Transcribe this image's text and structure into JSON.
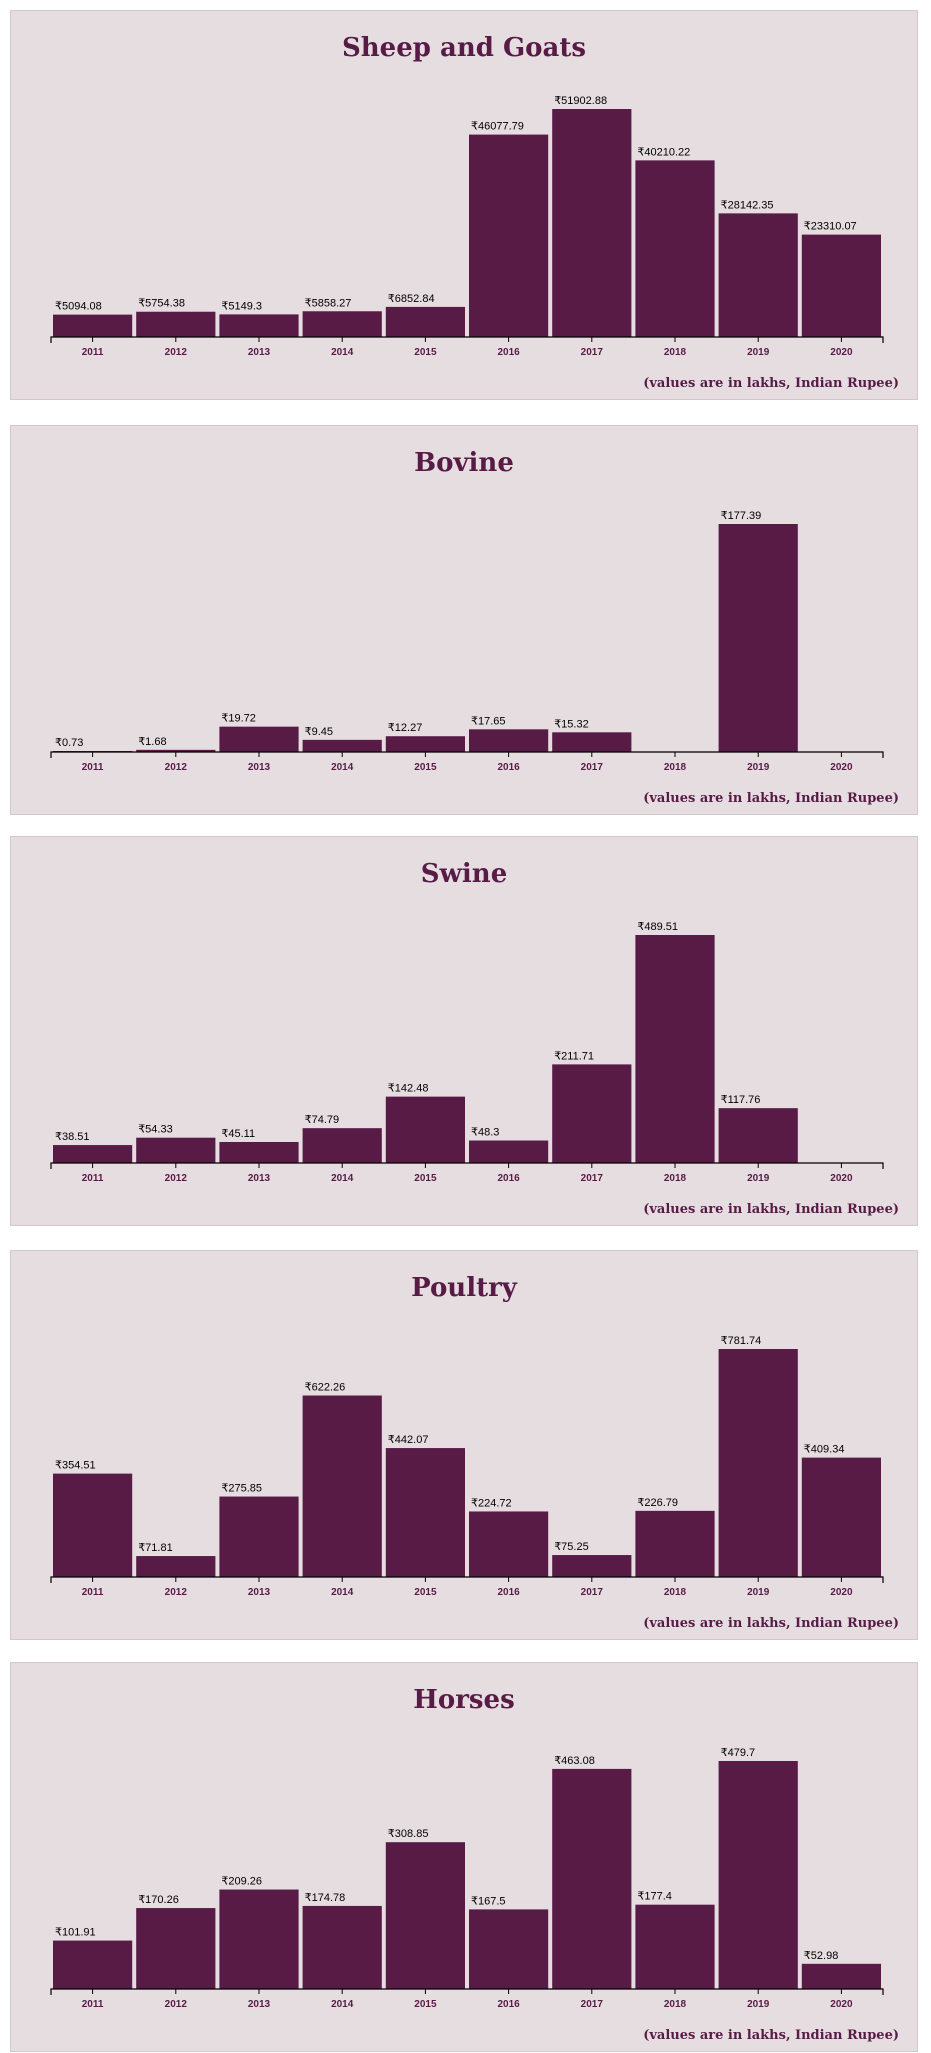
{
  "colors": {
    "bar": "#581b46",
    "panel": "#e6dde1",
    "title": "#581b46"
  },
  "chart_data": [
    {
      "type": "bar",
      "title": "Sheep and Goats",
      "note": "(values are in lakhs, Indian Rupee)",
      "categories": [
        "2011",
        "2012",
        "2013",
        "2014",
        "2015",
        "2016",
        "2017",
        "2018",
        "2019",
        "2020"
      ],
      "values": [
        5094.08,
        5754.38,
        5149.3,
        5858.27,
        6852.84,
        46077.79,
        51902.88,
        40210.22,
        28142.35,
        23310.07
      ],
      "labels": [
        "₹5094.08",
        "₹5754.38",
        "₹5149.3",
        "₹5858.27",
        "₹6852.84",
        "₹46077.79",
        "₹51902.88",
        "₹40210.22",
        "₹28142.35",
        "₹23310.07"
      ]
    },
    {
      "type": "bar",
      "title": "Bovine",
      "note": "(values are in lakhs, Indian Rupee)",
      "categories": [
        "2011",
        "2012",
        "2013",
        "2014",
        "2015",
        "2016",
        "2017",
        "2018",
        "2019",
        "2020"
      ],
      "values": [
        0.73,
        1.68,
        19.72,
        9.45,
        12.27,
        17.65,
        15.32,
        null,
        177.39,
        null
      ],
      "labels": [
        "₹0.73",
        "₹1.68",
        "₹19.72",
        "₹9.45",
        "₹12.27",
        "₹17.65",
        "₹15.32",
        "",
        "₹177.39",
        ""
      ]
    },
    {
      "type": "bar",
      "title": "Swine",
      "note": "(values are in lakhs, Indian Rupee)",
      "categories": [
        "2011",
        "2012",
        "2013",
        "2014",
        "2015",
        "2016",
        "2017",
        "2018",
        "2019",
        "2020"
      ],
      "values": [
        38.51,
        54.33,
        45.11,
        74.79,
        142.48,
        48.3,
        211.71,
        489.51,
        117.76,
        null
      ],
      "labels": [
        "₹38.51",
        "₹54.33",
        "₹45.11",
        "₹74.79",
        "₹142.48",
        "₹48.3",
        "₹211.71",
        "₹489.51",
        "₹117.76",
        ""
      ]
    },
    {
      "type": "bar",
      "title": "Poultry",
      "note": "(values are in lakhs, Indian Rupee)",
      "categories": [
        "2011",
        "2012",
        "2013",
        "2014",
        "2015",
        "2016",
        "2017",
        "2018",
        "2019",
        "2020"
      ],
      "values": [
        354.51,
        71.81,
        275.85,
        622.26,
        442.07,
        224.72,
        75.25,
        226.79,
        781.74,
        409.34
      ],
      "labels": [
        "₹354.51",
        "₹71.81",
        "₹275.85",
        "₹622.26",
        "₹442.07",
        "₹224.72",
        "₹75.25",
        "₹226.79",
        "₹781.74",
        "₹409.34"
      ]
    },
    {
      "type": "bar",
      "title": "Horses",
      "note": "(values are in lakhs, Indian Rupee)",
      "categories": [
        "2011",
        "2012",
        "2013",
        "2014",
        "2015",
        "2016",
        "2017",
        "2018",
        "2019",
        "2020"
      ],
      "values": [
        101.91,
        170.26,
        209.26,
        174.78,
        308.85,
        167.5,
        463.08,
        177.4,
        479.7,
        52.98
      ],
      "labels": [
        "₹101.91",
        "₹170.26",
        "₹209.26",
        "₹174.78",
        "₹308.85",
        "₹167.5",
        "₹463.08",
        "₹177.4",
        "₹479.7",
        "₹52.98"
      ]
    }
  ]
}
